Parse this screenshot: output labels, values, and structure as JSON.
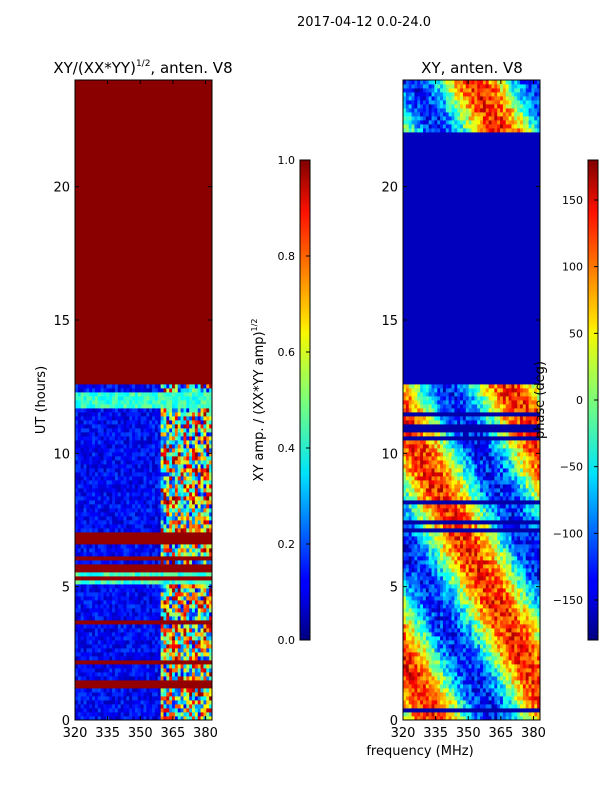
{
  "figure": {
    "suptitle": "2017-04-12 0.0-24.0",
    "xlabel_shared": "frequency (MHz)"
  },
  "chart_data": [
    {
      "type": "heatmap",
      "title_main": "XY/(XX*YY)",
      "title_sup": "1/2",
      "title_tail": ", anten. V8",
      "ylabel": "UT (hours)",
      "xlim": [
        320,
        383
      ],
      "ylim": [
        0,
        24
      ],
      "xticks": [
        320,
        335,
        350,
        365,
        380
      ],
      "yticks": [
        0,
        5,
        10,
        15,
        20
      ],
      "colorbar": {
        "label_main": "XY amp. / (XX*YY amp)",
        "label_sup": "1/2",
        "range": [
          0.0,
          1.0
        ],
        "ticks": [
          "0.0",
          "0.2",
          "0.4",
          "0.6",
          "0.8",
          "1.0"
        ],
        "colormap": "jet"
      },
      "saturated_bands_hours": [
        [
          12.6,
          21.6
        ],
        [
          19.8,
          24.0
        ]
      ],
      "rfi_band_mhz": [
        360,
        383
      ],
      "bright_rows_hours": [
        5.4,
        12.0
      ]
    },
    {
      "type": "heatmap",
      "title": "XY, anten. V8",
      "ylabel": "",
      "xlim": [
        320,
        383
      ],
      "ylim": [
        0,
        24
      ],
      "xticks": [
        320,
        335,
        350,
        365,
        380
      ],
      "yticks": [
        0,
        5,
        10,
        15,
        20
      ],
      "colorbar": {
        "label": "phase (deg)",
        "range": [
          -180,
          180
        ],
        "ticks": [
          "150",
          "100",
          "50",
          "0",
          "−50",
          "−100",
          "−150"
        ],
        "tick_values": [
          150,
          100,
          50,
          0,
          -50,
          -100,
          -150
        ],
        "colormap": "jet"
      },
      "flagged_band_hours": [
        12.6,
        22.0
      ]
    }
  ]
}
